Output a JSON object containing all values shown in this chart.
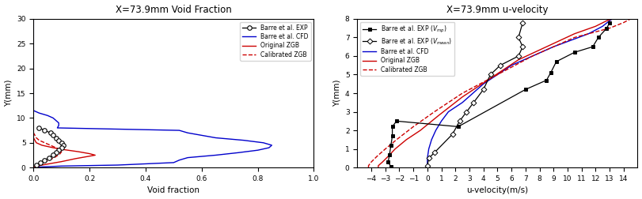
{
  "plot1": {
    "title": "X=73.9mm Void Fraction",
    "xlabel": "Void fraction",
    "ylabel": "Y(mm)",
    "xlim": [
      0,
      1.0
    ],
    "ylim": [
      0,
      30
    ],
    "xticks": [
      0.0,
      0.2,
      0.4,
      0.6,
      0.8,
      1.0
    ],
    "yticks": [
      0,
      5,
      10,
      15,
      20,
      25,
      30
    ],
    "exp_x": [
      0.02,
      0.04,
      0.06,
      0.07,
      0.08,
      0.09,
      0.1,
      0.105,
      0.1,
      0.09,
      0.08,
      0.07,
      0.055,
      0.04,
      0.025,
      0.01
    ],
    "exp_y": [
      8.0,
      7.5,
      7.0,
      6.5,
      6.0,
      5.5,
      5.0,
      4.5,
      4.0,
      3.5,
      3.0,
      2.5,
      2.0,
      1.5,
      1.0,
      0.5
    ],
    "cfd_x": [
      0.0,
      0.0,
      0.02,
      0.05,
      0.07,
      0.08,
      0.09,
      0.09,
      0.085,
      0.52,
      0.55,
      0.65,
      0.75,
      0.82,
      0.85,
      0.84,
      0.8,
      0.73,
      0.65,
      0.55,
      0.52,
      0.5,
      0.3,
      0.1,
      0.02,
      0.0
    ],
    "cfd_y": [
      30.0,
      11.5,
      11.0,
      10.5,
      10.0,
      9.5,
      9.0,
      8.5,
      8.0,
      7.5,
      7.0,
      6.0,
      5.5,
      5.0,
      4.5,
      4.0,
      3.5,
      3.0,
      2.5,
      2.0,
      1.5,
      1.0,
      0.5,
      0.3,
      0.1,
      0.0
    ],
    "orig_x": [
      0.0,
      0.005,
      0.01,
      0.03,
      0.06,
      0.1,
      0.15,
      0.19,
      0.22,
      0.2,
      0.16,
      0.11,
      0.07,
      0.03,
      0.01,
      0.005,
      0.0
    ],
    "orig_y": [
      0.0,
      0.1,
      0.2,
      0.5,
      0.8,
      1.2,
      1.8,
      2.2,
      2.5,
      2.8,
      3.2,
      3.6,
      4.0,
      4.5,
      5.0,
      5.5,
      6.0
    ],
    "cal_x": [
      0.0,
      0.005,
      0.01,
      0.02,
      0.04,
      0.06,
      0.08,
      0.095,
      0.1,
      0.095,
      0.08,
      0.06,
      0.04,
      0.02,
      0.01,
      0.005,
      0.0
    ],
    "cal_y": [
      0.0,
      0.2,
      0.4,
      0.7,
      1.1,
      1.6,
      2.2,
      2.8,
      3.2,
      3.6,
      4.0,
      4.5,
      5.0,
      5.5,
      6.0,
      6.5,
      7.0
    ]
  },
  "plot2": {
    "title": "X=73.9mm u-velocity",
    "xlabel": "u-velocity(m/s)",
    "ylabel": "Y(mm)",
    "xlim": [
      -5,
      15
    ],
    "ylim": [
      0,
      8
    ],
    "xticks": [
      -4,
      -3,
      -2,
      -1,
      0,
      1,
      2,
      3,
      4,
      5,
      6,
      7,
      8,
      9,
      10,
      11,
      12,
      13,
      14
    ],
    "yticks": [
      0,
      1,
      2,
      3,
      4,
      5,
      6,
      7,
      8
    ],
    "exp_vmp_x": [
      -2.6,
      -2.8,
      -2.7,
      -2.6,
      -2.5,
      -2.5,
      -2.2,
      2.2,
      7.0,
      8.5,
      8.8,
      9.2,
      10.5,
      11.8,
      12.2,
      12.8,
      13.0
    ],
    "exp_vmp_y": [
      0.05,
      0.3,
      0.7,
      1.2,
      1.7,
      2.2,
      2.5,
      2.2,
      4.2,
      4.7,
      5.1,
      5.7,
      6.2,
      6.5,
      7.0,
      7.5,
      7.8
    ],
    "exp_vmean_x": [
      0.0,
      0.1,
      0.5,
      1.8,
      2.3,
      2.8,
      3.3,
      4.0,
      4.5,
      5.2,
      6.5,
      6.8,
      6.5,
      6.8
    ],
    "exp_vmean_y": [
      0.1,
      0.5,
      0.8,
      1.8,
      2.5,
      3.0,
      3.5,
      4.2,
      5.0,
      5.5,
      6.0,
      6.5,
      7.0,
      7.8
    ],
    "cfd_x": [
      0.0,
      0.0,
      0.1,
      0.3,
      0.6,
      1.0,
      1.5,
      2.5,
      4.0,
      6.0,
      9.0,
      11.5,
      12.5,
      13.0,
      13.2
    ],
    "cfd_y": [
      0.0,
      0.5,
      1.0,
      1.5,
      2.0,
      2.5,
      3.0,
      3.5,
      4.5,
      5.5,
      6.5,
      7.2,
      7.6,
      7.9,
      8.0
    ],
    "orig_x": [
      -3.5,
      -3.5,
      -3.2,
      -2.8,
      -2.3,
      -1.5,
      -0.5,
      0.8,
      2.5,
      4.5,
      6.5,
      8.5,
      10.5,
      12.0,
      12.8,
      13.2
    ],
    "orig_y": [
      0.0,
      0.1,
      0.3,
      0.6,
      1.0,
      1.5,
      2.0,
      2.8,
      3.8,
      4.8,
      5.8,
      6.5,
      7.2,
      7.6,
      7.9,
      8.0
    ],
    "cal_x": [
      -4.2,
      -4.2,
      -4.0,
      -3.6,
      -3.0,
      -2.2,
      -1.0,
      0.5,
      2.5,
      5.0,
      7.5,
      10.5,
      13.0,
      14.0,
      14.5
    ],
    "cal_y": [
      0.0,
      0.1,
      0.3,
      0.6,
      1.0,
      1.5,
      2.2,
      3.0,
      4.0,
      5.0,
      6.0,
      7.0,
      7.5,
      7.8,
      8.0
    ]
  },
  "colors": {
    "exp": "#000000",
    "cfd": "#0000cc",
    "orig": "#cc0000",
    "cal": "#cc0000"
  }
}
